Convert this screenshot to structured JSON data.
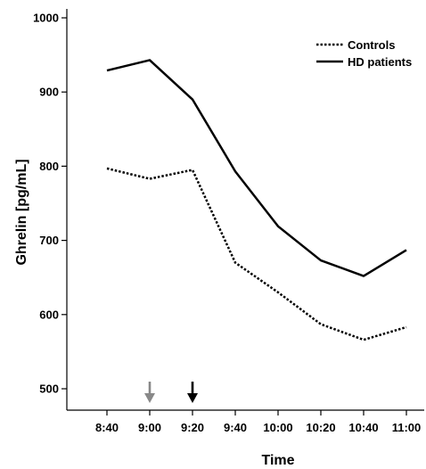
{
  "chart_data": {
    "type": "line",
    "title": "",
    "xlabel": "Time",
    "ylabel": "Ghrelin [pg/mL]",
    "categories": [
      "8:40",
      "9:00",
      "9:20",
      "9:40",
      "10:00",
      "10:20",
      "10:40",
      "11:00"
    ],
    "ylim": [
      470,
      1010
    ],
    "yticks": [
      500,
      600,
      700,
      800,
      900,
      1000
    ],
    "grid": false,
    "legend_position": "top-right",
    "series": [
      {
        "name": "Controls",
        "style": "dotted",
        "color": "#000000",
        "values": [
          797,
          783,
          795,
          670,
          630,
          587,
          566,
          583
        ]
      },
      {
        "name": "HD patients",
        "style": "solid",
        "color": "#000000",
        "values": [
          929,
          943,
          890,
          793,
          719,
          673,
          652,
          687
        ]
      }
    ],
    "annotations": [
      {
        "type": "arrow-down",
        "at": "9:00",
        "color": "#888888"
      },
      {
        "type": "arrow-down",
        "at": "9:20",
        "color": "#000000"
      }
    ]
  }
}
